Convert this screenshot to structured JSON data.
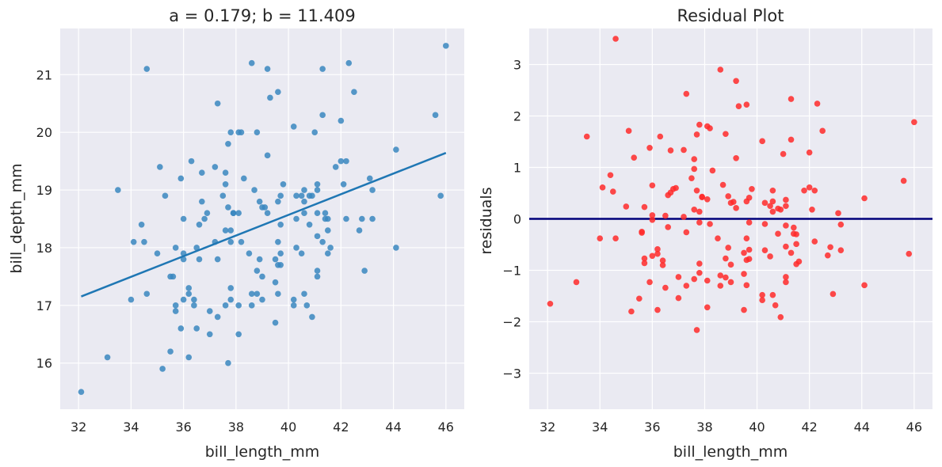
{
  "chart_data": [
    {
      "type": "scatter",
      "title": "a = 0.179; b = 11.409",
      "xlabel": "bill_length_mm",
      "ylabel": "bill_depth_mm",
      "xlim": [
        31.3,
        46.7
      ],
      "ylim": [
        15.2,
        21.8
      ],
      "xticks": [
        32,
        34,
        36,
        38,
        40,
        42,
        44,
        46
      ],
      "yticks": [
        16,
        17,
        18,
        19,
        20,
        21
      ],
      "grid": true,
      "legend": "none",
      "point_color": "#3a87c0",
      "line_color": "#1f77b4",
      "regression_line": {
        "slope": 0.179,
        "intercept": 11.409,
        "x": [
          32.1,
          46.0
        ]
      },
      "points": [
        [
          32.1,
          15.5
        ],
        [
          33.1,
          16.1
        ],
        [
          33.5,
          19.0
        ],
        [
          34.0,
          17.1
        ],
        [
          34.1,
          18.1
        ],
        [
          34.4,
          18.4
        ],
        [
          34.5,
          18.1
        ],
        [
          34.6,
          21.1
        ],
        [
          34.6,
          17.2
        ],
        [
          35.0,
          17.9
        ],
        [
          35.1,
          19.4
        ],
        [
          35.2,
          15.9
        ],
        [
          35.3,
          18.9
        ],
        [
          35.5,
          16.2
        ],
        [
          35.5,
          17.5
        ],
        [
          35.6,
          17.5
        ],
        [
          35.7,
          16.9
        ],
        [
          35.7,
          17.0
        ],
        [
          35.7,
          18.0
        ],
        [
          35.9,
          16.6
        ],
        [
          35.9,
          19.2
        ],
        [
          36.0,
          17.1
        ],
        [
          36.0,
          17.8
        ],
        [
          36.0,
          17.9
        ],
        [
          36.0,
          18.5
        ],
        [
          36.2,
          16.1
        ],
        [
          36.2,
          17.2
        ],
        [
          36.2,
          17.3
        ],
        [
          36.3,
          19.5
        ],
        [
          36.4,
          17.0
        ],
        [
          36.4,
          17.1
        ],
        [
          36.5,
          16.6
        ],
        [
          36.5,
          18.0
        ],
        [
          36.6,
          17.8
        ],
        [
          36.6,
          18.4
        ],
        [
          36.7,
          18.8
        ],
        [
          36.7,
          19.3
        ],
        [
          36.8,
          18.5
        ],
        [
          36.9,
          18.6
        ],
        [
          37.0,
          16.5
        ],
        [
          37.0,
          16.9
        ],
        [
          37.2,
          18.1
        ],
        [
          37.2,
          19.4
        ],
        [
          37.3,
          16.8
        ],
        [
          37.3,
          17.8
        ],
        [
          37.3,
          20.5
        ],
        [
          37.5,
          18.9
        ],
        [
          37.6,
          17.0
        ],
        [
          37.6,
          18.3
        ],
        [
          37.6,
          19.1
        ],
        [
          37.6,
          19.3
        ],
        [
          37.7,
          16.0
        ],
        [
          37.7,
          18.7
        ],
        [
          37.7,
          19.8
        ],
        [
          37.8,
          17.1
        ],
        [
          37.8,
          17.3
        ],
        [
          37.8,
          18.1
        ],
        [
          37.8,
          18.3
        ],
        [
          37.8,
          20.0
        ],
        [
          37.9,
          18.6
        ],
        [
          37.9,
          18.6
        ],
        [
          38.1,
          16.5
        ],
        [
          38.1,
          17.0
        ],
        [
          38.1,
          18.6
        ],
        [
          38.1,
          20.0
        ],
        [
          38.2,
          18.1
        ],
        [
          38.2,
          20.0
        ],
        [
          38.3,
          19.2
        ],
        [
          38.5,
          17.9
        ],
        [
          38.6,
          17.0
        ],
        [
          38.6,
          17.2
        ],
        [
          38.6,
          21.2
        ],
        [
          38.7,
          19.0
        ],
        [
          38.8,
          17.2
        ],
        [
          38.8,
          17.6
        ],
        [
          38.8,
          20.0
        ],
        [
          38.9,
          17.8
        ],
        [
          38.9,
          18.8
        ],
        [
          39.0,
          17.1
        ],
        [
          39.0,
          17.5
        ],
        [
          39.0,
          18.7
        ],
        [
          39.1,
          18.7
        ],
        [
          39.2,
          18.6
        ],
        [
          39.2,
          19.6
        ],
        [
          39.2,
          21.1
        ],
        [
          39.3,
          20.6
        ],
        [
          39.5,
          16.7
        ],
        [
          39.5,
          17.4
        ],
        [
          39.5,
          17.8
        ],
        [
          39.6,
          17.2
        ],
        [
          39.6,
          17.7
        ],
        [
          39.6,
          18.1
        ],
        [
          39.6,
          18.8
        ],
        [
          39.6,
          20.7
        ],
        [
          39.7,
          17.7
        ],
        [
          39.7,
          17.9
        ],
        [
          39.7,
          18.4
        ],
        [
          39.7,
          18.9
        ],
        [
          39.8,
          19.1
        ],
        [
          40.2,
          17.0
        ],
        [
          40.2,
          17.1
        ],
        [
          40.2,
          20.1
        ],
        [
          40.3,
          18.0
        ],
        [
          40.3,
          18.5
        ],
        [
          40.3,
          18.9
        ],
        [
          40.5,
          17.9
        ],
        [
          40.5,
          18.9
        ],
        [
          40.6,
          17.2
        ],
        [
          40.6,
          18.6
        ],
        [
          40.6,
          18.8
        ],
        [
          40.6,
          19.0
        ],
        [
          40.7,
          17.0
        ],
        [
          40.8,
          18.4
        ],
        [
          40.8,
          18.9
        ],
        [
          40.9,
          16.8
        ],
        [
          40.9,
          18.9
        ],
        [
          41.0,
          20.0
        ],
        [
          41.1,
          17.5
        ],
        [
          41.1,
          17.6
        ],
        [
          41.1,
          18.2
        ],
        [
          41.1,
          18.6
        ],
        [
          41.1,
          19.0
        ],
        [
          41.1,
          19.1
        ],
        [
          41.3,
          18.1
        ],
        [
          41.3,
          20.3
        ],
        [
          41.3,
          21.1
        ],
        [
          41.4,
          18.5
        ],
        [
          41.4,
          18.6
        ],
        [
          41.5,
          17.9
        ],
        [
          41.5,
          18.3
        ],
        [
          41.5,
          18.5
        ],
        [
          41.6,
          18.0
        ],
        [
          41.8,
          19.4
        ],
        [
          42.0,
          19.5
        ],
        [
          42.0,
          20.2
        ],
        [
          42.1,
          19.1
        ],
        [
          42.2,
          18.5
        ],
        [
          42.2,
          19.5
        ],
        [
          42.3,
          21.2
        ],
        [
          42.5,
          20.7
        ],
        [
          42.7,
          18.3
        ],
        [
          42.8,
          18.5
        ],
        [
          42.9,
          17.6
        ],
        [
          43.1,
          19.2
        ],
        [
          43.2,
          18.5
        ],
        [
          43.2,
          19.0
        ],
        [
          44.1,
          18.0
        ],
        [
          44.1,
          19.7
        ],
        [
          45.6,
          20.3
        ],
        [
          45.8,
          18.9
        ],
        [
          46.0,
          21.5
        ]
      ]
    },
    {
      "type": "scatter",
      "title": "Residual Plot",
      "xlabel": "bill_length_mm",
      "ylabel": "residuals",
      "xlim": [
        31.3,
        46.7
      ],
      "ylim": [
        -3.7,
        3.7
      ],
      "xticks": [
        32,
        34,
        36,
        38,
        40,
        42,
        44,
        46
      ],
      "yticks": [
        -3,
        -2,
        -1,
        0,
        1,
        2,
        3
      ],
      "grid": true,
      "legend": "none",
      "point_color": "#ff2a2a",
      "zero_line": {
        "y": 0,
        "color": "#00007a"
      },
      "points": [
        [
          32.1,
          -1.65
        ],
        [
          33.1,
          -1.23
        ],
        [
          33.5,
          1.6
        ],
        [
          34.0,
          -0.38
        ],
        [
          34.1,
          0.61
        ],
        [
          34.4,
          0.85
        ],
        [
          34.5,
          0.53
        ],
        [
          34.6,
          3.5
        ],
        [
          34.6,
          -0.38
        ],
        [
          35.0,
          0.24
        ],
        [
          35.1,
          1.71
        ],
        [
          35.2,
          -1.8
        ],
        [
          35.3,
          1.19
        ],
        [
          35.5,
          -1.55
        ],
        [
          35.6,
          -0.25
        ],
        [
          35.6,
          -0.27
        ],
        [
          35.7,
          -0.86
        ],
        [
          35.7,
          -0.77
        ],
        [
          35.7,
          0.23
        ],
        [
          35.9,
          -1.23
        ],
        [
          35.9,
          1.38
        ],
        [
          36.0,
          -0.72
        ],
        [
          36.0,
          -0.02
        ],
        [
          36.0,
          0.07
        ],
        [
          36.0,
          0.65
        ],
        [
          36.2,
          -1.77
        ],
        [
          36.2,
          -0.68
        ],
        [
          36.2,
          -0.59
        ],
        [
          36.3,
          1.6
        ],
        [
          36.4,
          -0.81
        ],
        [
          36.4,
          -0.9
        ],
        [
          36.5,
          -1.34
        ],
        [
          36.5,
          0.06
        ],
        [
          36.6,
          -0.16
        ],
        [
          36.6,
          0.46
        ],
        [
          36.7,
          0.51
        ],
        [
          36.7,
          1.33
        ],
        [
          36.8,
          0.58
        ],
        [
          36.9,
          0.6
        ],
        [
          37.0,
          -1.54
        ],
        [
          37.0,
          -1.13
        ],
        [
          37.2,
          0.04
        ],
        [
          37.2,
          1.34
        ],
        [
          37.3,
          -1.3
        ],
        [
          37.3,
          -0.26
        ],
        [
          37.3,
          2.43
        ],
        [
          37.5,
          0.79
        ],
        [
          37.6,
          -1.17
        ],
        [
          37.6,
          0.18
        ],
        [
          37.6,
          0.97
        ],
        [
          37.6,
          1.16
        ],
        [
          37.7,
          -2.16
        ],
        [
          37.7,
          0.55
        ],
        [
          37.7,
          1.64
        ],
        [
          37.8,
          -1.05
        ],
        [
          37.8,
          -0.87
        ],
        [
          37.8,
          -0.07
        ],
        [
          37.8,
          0.14
        ],
        [
          37.8,
          1.83
        ],
        [
          37.9,
          0.43
        ],
        [
          37.9,
          0.42
        ],
        [
          38.1,
          -1.72
        ],
        [
          38.1,
          -1.2
        ],
        [
          38.1,
          0.38
        ],
        [
          38.1,
          1.8
        ],
        [
          38.2,
          -0.1
        ],
        [
          38.2,
          1.76
        ],
        [
          38.3,
          0.94
        ],
        [
          38.5,
          -0.38
        ],
        [
          38.6,
          -1.3
        ],
        [
          38.6,
          -1.1
        ],
        [
          38.6,
          2.9
        ],
        [
          38.7,
          0.66
        ],
        [
          38.8,
          -1.14
        ],
        [
          38.8,
          -0.77
        ],
        [
          38.8,
          1.65
        ],
        [
          38.9,
          -0.56
        ],
        [
          38.9,
          0.44
        ],
        [
          39.0,
          -1.23
        ],
        [
          39.0,
          -0.89
        ],
        [
          39.0,
          0.31
        ],
        [
          39.1,
          0.33
        ],
        [
          39.2,
          0.21
        ],
        [
          39.2,
          1.18
        ],
        [
          39.2,
          2.68
        ],
        [
          39.3,
          2.19
        ],
        [
          39.5,
          -1.77
        ],
        [
          39.5,
          -1.07
        ],
        [
          39.5,
          -0.66
        ],
        [
          39.6,
          -1.29
        ],
        [
          39.6,
          -0.8
        ],
        [
          39.6,
          -0.38
        ],
        [
          39.6,
          0.34
        ],
        [
          39.6,
          2.22
        ],
        [
          39.7,
          -0.78
        ],
        [
          39.7,
          -0.6
        ],
        [
          39.7,
          -0.07
        ],
        [
          39.7,
          0.41
        ],
        [
          39.8,
          0.58
        ],
        [
          40.2,
          -1.58
        ],
        [
          40.2,
          -1.48
        ],
        [
          40.2,
          1.51
        ],
        [
          40.3,
          -0.61
        ],
        [
          40.3,
          -0.1
        ],
        [
          40.3,
          0.31
        ],
        [
          40.5,
          -0.73
        ],
        [
          40.5,
          0.25
        ],
        [
          40.6,
          -1.48
        ],
        [
          40.6,
          0.14
        ],
        [
          40.6,
          0.34
        ],
        [
          40.6,
          0.55
        ],
        [
          40.7,
          -1.68
        ],
        [
          40.8,
          -0.29
        ],
        [
          40.8,
          0.2
        ],
        [
          40.9,
          -1.91
        ],
        [
          40.9,
          0.18
        ],
        [
          41.0,
          1.26
        ],
        [
          41.1,
          -1.23
        ],
        [
          41.1,
          -1.13
        ],
        [
          41.1,
          -0.54
        ],
        [
          41.1,
          -0.13
        ],
        [
          41.1,
          0.25
        ],
        [
          41.1,
          0.37
        ],
        [
          41.3,
          -0.66
        ],
        [
          41.3,
          1.54
        ],
        [
          41.3,
          2.33
        ],
        [
          41.4,
          -0.29
        ],
        [
          41.4,
          -0.17
        ],
        [
          41.5,
          -0.88
        ],
        [
          41.5,
          -0.49
        ],
        [
          41.5,
          -0.3
        ],
        [
          41.6,
          -0.83
        ],
        [
          41.8,
          0.55
        ],
        [
          42.0,
          0.61
        ],
        [
          42.0,
          1.29
        ],
        [
          42.1,
          0.18
        ],
        [
          42.2,
          -0.44
        ],
        [
          42.2,
          0.55
        ],
        [
          42.3,
          2.24
        ],
        [
          42.5,
          1.71
        ],
        [
          42.7,
          -0.71
        ],
        [
          42.8,
          -0.55
        ],
        [
          42.9,
          -1.46
        ],
        [
          43.1,
          0.11
        ],
        [
          43.2,
          -0.61
        ],
        [
          43.2,
          -0.11
        ],
        [
          44.1,
          -1.29
        ],
        [
          44.1,
          0.4
        ],
        [
          45.6,
          0.74
        ],
        [
          45.8,
          -0.68
        ],
        [
          46.0,
          1.88
        ]
      ]
    }
  ]
}
